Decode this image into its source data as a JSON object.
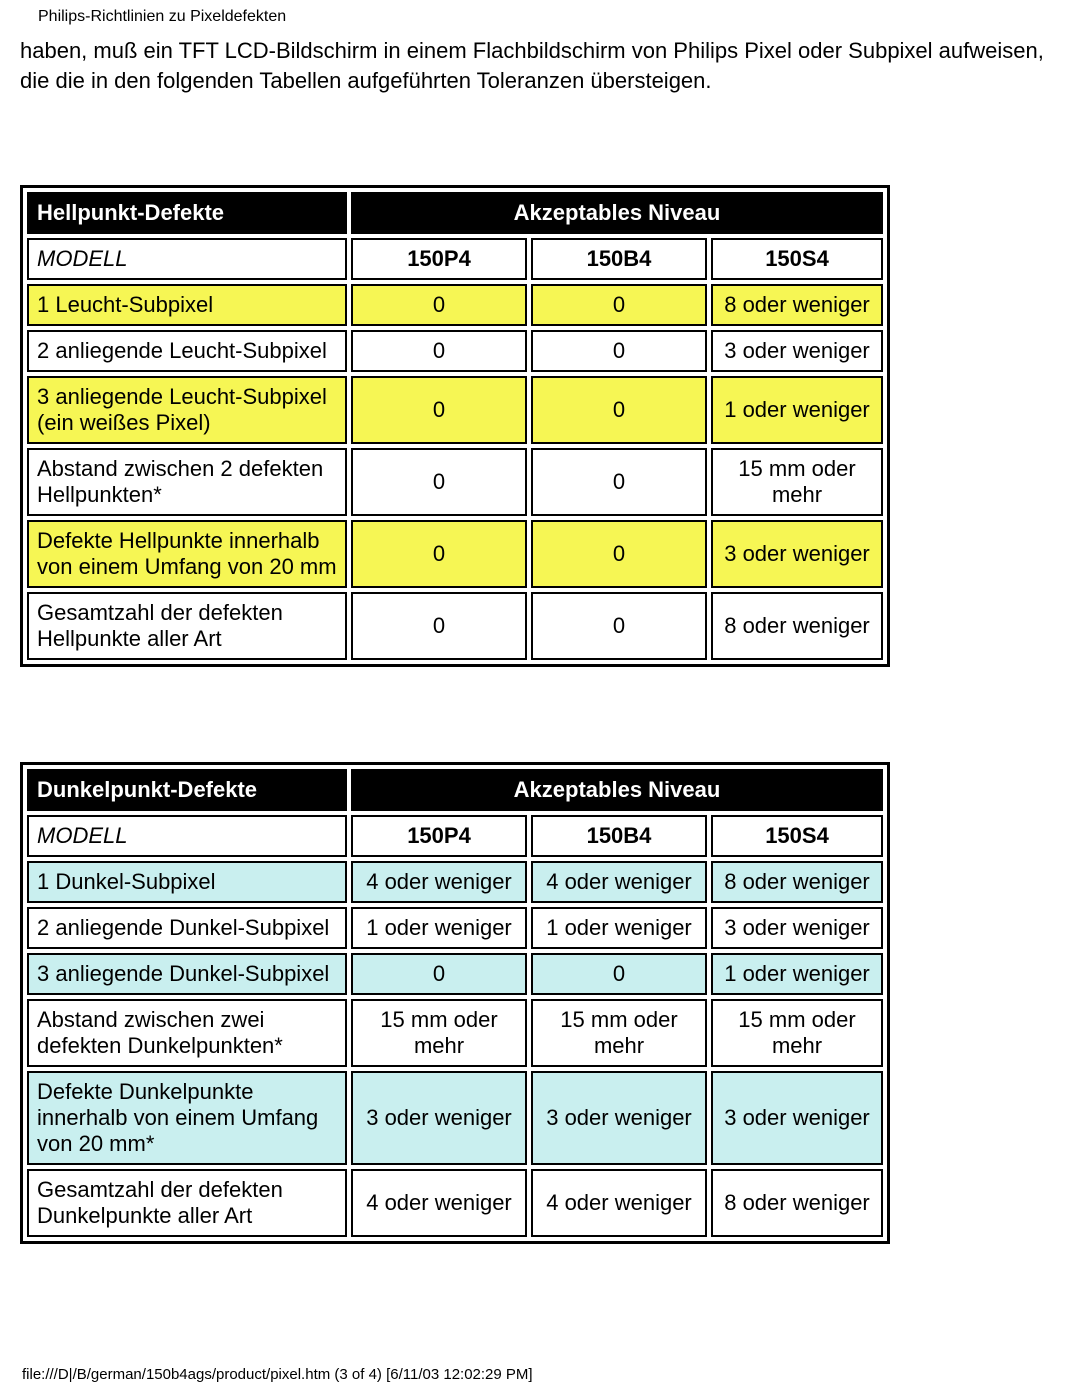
{
  "header": {
    "title": "Philips-Richtlinien zu Pixeldefekten"
  },
  "intro": "haben, muß ein TFT LCD-Bildschirm in einem Flachbildschirm von Philips Pixel oder Subpixel aufweisen, die die in den folgenden Tabellen aufgeführten Toleranzen übersteigen.",
  "colors": {
    "header_bg": "#000000",
    "header_fg": "#ffffff",
    "row_highlight_bright": "#f6f654",
    "row_highlight_dark": "#c9efef",
    "border": "#000000",
    "page_bg": "#ffffff"
  },
  "table_bright": {
    "title_defects": "Hellpunkt-Defekte",
    "title_level": "Akzeptables Niveau",
    "model_label": "MODELL",
    "models": [
      "150P4",
      "150B4",
      "150S4"
    ],
    "rows": [
      {
        "label": "1 Leucht-Subpixel",
        "v": [
          "0",
          "0",
          "8 oder weniger"
        ],
        "highlight": true
      },
      {
        "label": "2 anliegende Leucht-Subpixel",
        "v": [
          "0",
          "0",
          "3 oder weniger"
        ],
        "highlight": false
      },
      {
        "label": "3 anliegende Leucht-Subpixel (ein weißes Pixel)",
        "v": [
          "0",
          "0",
          "1 oder weniger"
        ],
        "highlight": true
      },
      {
        "label": "Abstand zwischen 2 defekten Hellpunkten*",
        "v": [
          "0",
          "0",
          "15 mm oder mehr"
        ],
        "highlight": false
      },
      {
        "label": "Defekte Hellpunkte innerhalb von einem Umfang von 20 mm",
        "v": [
          "0",
          "0",
          "3 oder weniger"
        ],
        "highlight": true
      },
      {
        "label": "Gesamtzahl der defekten Hellpunkte aller Art",
        "v": [
          "0",
          "0",
          "8 oder weniger"
        ],
        "highlight": false
      }
    ]
  },
  "table_dark": {
    "title_defects": "Dunkelpunkt-Defekte",
    "title_level": "Akzeptables Niveau",
    "model_label": "MODELL",
    "models": [
      "150P4",
      "150B4",
      "150S4"
    ],
    "rows": [
      {
        "label": "1 Dunkel-Subpixel",
        "v": [
          "4 oder weniger",
          "4 oder weniger",
          "8 oder weniger"
        ],
        "highlight": true
      },
      {
        "label": "2 anliegende Dunkel-Subpixel",
        "v": [
          "1 oder weniger",
          "1 oder weniger",
          "3 oder weniger"
        ],
        "highlight": false
      },
      {
        "label": "3 anliegende Dunkel-Subpixel",
        "v": [
          "0",
          "0",
          "1 oder weniger"
        ],
        "highlight": true
      },
      {
        "label": "Abstand zwischen zwei defekten Dunkelpunkten*",
        "v": [
          "15 mm oder mehr",
          "15 mm oder mehr",
          "15 mm oder mehr"
        ],
        "highlight": false
      },
      {
        "label": "Defekte Dunkelpunkte innerhalb von einem Umfang von 20 mm*",
        "v": [
          "3 oder weniger",
          "3 oder weniger",
          "3 oder weniger"
        ],
        "highlight": true
      },
      {
        "label": "Gesamtzahl der defekten Dunkelpunkte aller Art",
        "v": [
          "4 oder weniger",
          "4 oder weniger",
          "8 oder weniger"
        ],
        "highlight": false
      }
    ]
  },
  "footer": "file:///D|/B/german/150b4ags/product/pixel.htm (3 of 4) [6/11/03 12:02:29 PM]"
}
